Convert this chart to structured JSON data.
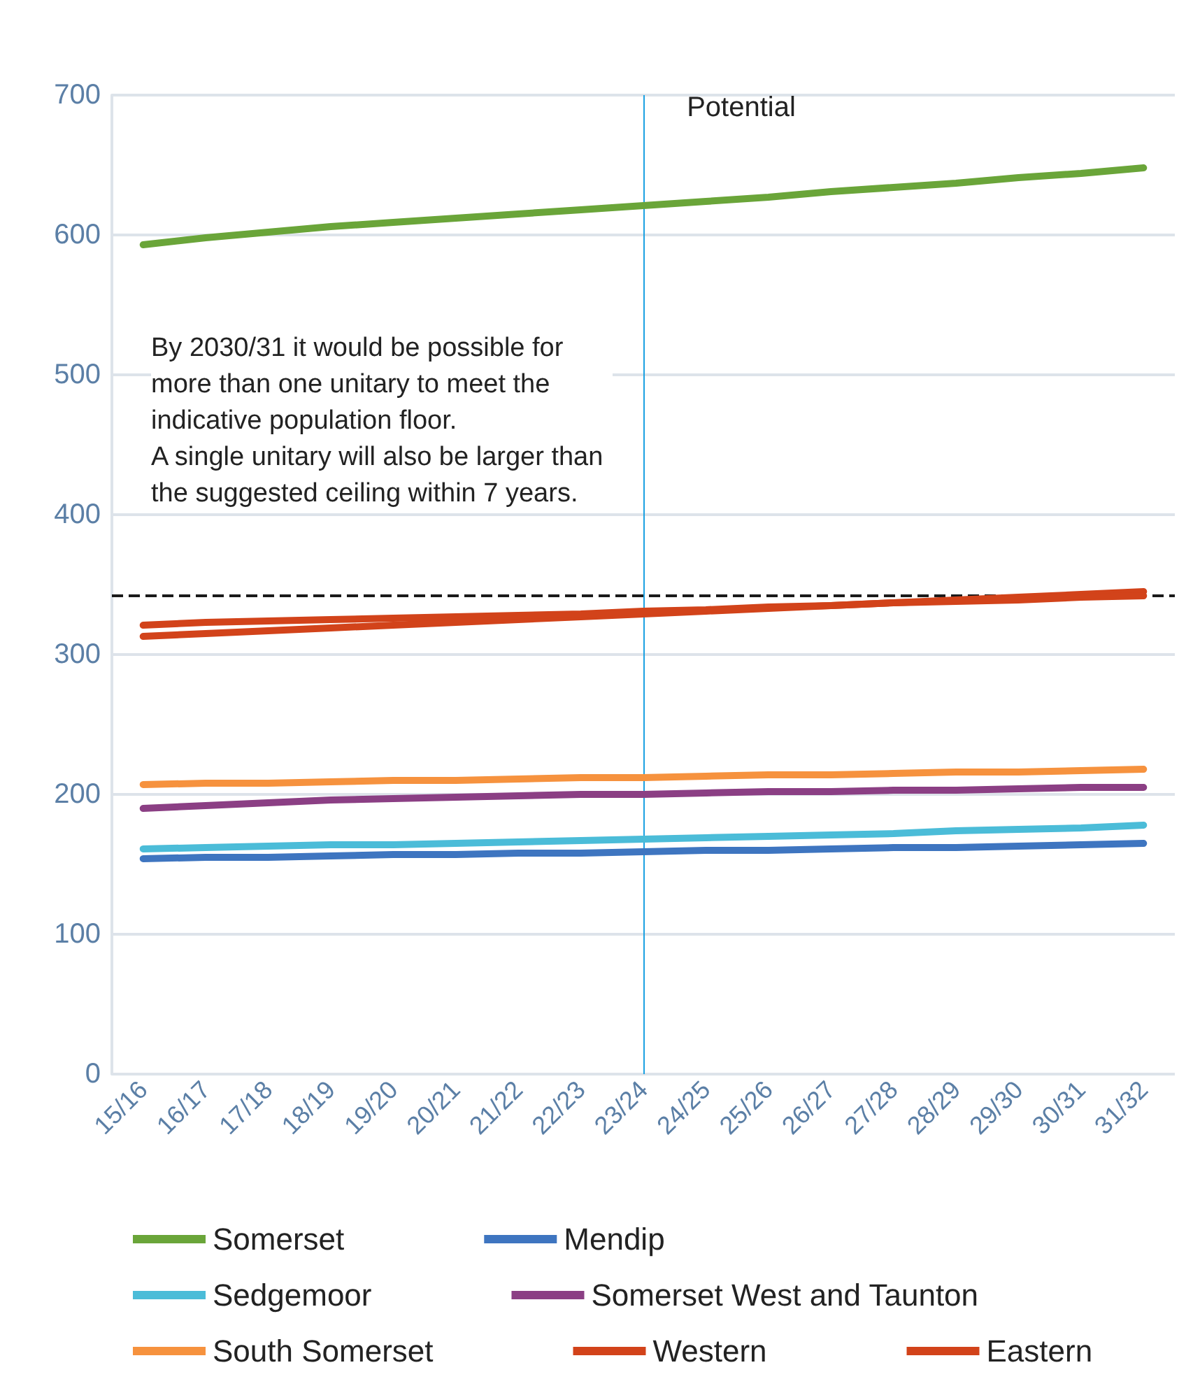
{
  "chart_data": {
    "type": "line",
    "categories": [
      "15/16",
      "16/17",
      "17/18",
      "18/19",
      "19/20",
      "20/21",
      "21/22",
      "22/23",
      "23/24",
      "24/25",
      "25/26",
      "26/27",
      "27/28",
      "28/29",
      "29/30",
      "30/31",
      "31/32"
    ],
    "series": [
      {
        "name": "Somerset",
        "color": "#6aa539",
        "values": [
          593,
          598,
          602,
          606,
          609,
          612,
          615,
          618,
          621,
          624,
          627,
          631,
          634,
          637,
          641,
          644,
          648
        ]
      },
      {
        "name": "Mendip",
        "color": "#3e75c0",
        "values": [
          154,
          155,
          155,
          156,
          157,
          157,
          158,
          158,
          159,
          160,
          160,
          161,
          162,
          162,
          163,
          164,
          165
        ]
      },
      {
        "name": "Sedgemoor",
        "color": "#4bbcd8",
        "values": [
          161,
          162,
          163,
          164,
          164,
          165,
          166,
          167,
          168,
          169,
          170,
          171,
          172,
          174,
          175,
          176,
          178
        ]
      },
      {
        "name": "Somerset West and Taunton",
        "color": "#8b3f84",
        "values": [
          190,
          192,
          194,
          196,
          197,
          198,
          199,
          200,
          200,
          201,
          202,
          202,
          203,
          203,
          204,
          205,
          205
        ]
      },
      {
        "name": "South Somerset",
        "color": "#f6923e",
        "values": [
          207,
          208,
          208,
          209,
          210,
          210,
          211,
          212,
          212,
          213,
          214,
          214,
          215,
          216,
          216,
          217,
          218
        ]
      },
      {
        "name": "Western",
        "color": "#d2431a",
        "values": [
          313,
          315,
          317,
          319,
          321,
          323,
          325,
          327,
          329,
          331,
          333,
          335,
          337,
          339,
          341,
          343,
          345
        ]
      },
      {
        "name": "Eastern",
        "color": "#d2431a",
        "values": [
          321,
          323,
          324,
          325,
          326,
          327,
          328,
          329,
          331,
          332,
          334,
          335,
          337,
          338,
          339,
          341,
          342
        ]
      }
    ],
    "ylim": [
      0,
      700
    ],
    "yticks": [
      0,
      100,
      200,
      300,
      400,
      500,
      600,
      700
    ],
    "grid": "y",
    "legend": "bottom",
    "marker": "none",
    "line_style": "solid",
    "ref_lines": [
      {
        "axis": "x",
        "value": "23/24",
        "label": "Potential",
        "color": "#1ba1e2",
        "line_style": "solid"
      },
      {
        "axis": "y",
        "value": 342,
        "label": null,
        "color": "#1a1a1a",
        "line_style": "dashed"
      }
    ],
    "annotations": [
      "By 2030/31 it would be possible for more than one unitary to meet the indicative population floor.\nA single unitary will also be larger than the suggested ceiling within 7 years."
    ]
  }
}
